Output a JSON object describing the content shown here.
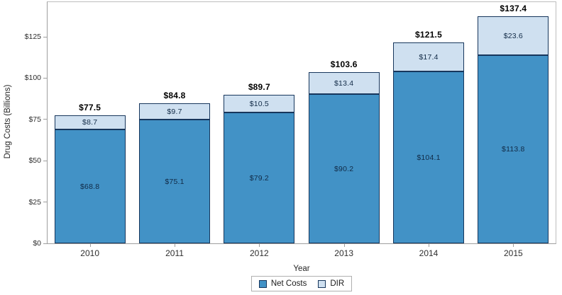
{
  "chart_data": {
    "type": "bar",
    "stacked": true,
    "title": "",
    "xlabel": "Year",
    "ylabel": "Drug Costs (Billions)",
    "categories": [
      "2010",
      "2011",
      "2012",
      "2013",
      "2014",
      "2015"
    ],
    "series": [
      {
        "name": "Net Costs",
        "color": "#4292c6",
        "values": [
          68.8,
          75.1,
          79.2,
          90.2,
          104.1,
          113.8
        ],
        "labels": [
          "$68.8",
          "$75.1",
          "$79.2",
          "$90.2",
          "$104.1",
          "$113.8"
        ]
      },
      {
        "name": "DIR",
        "color": "#cfe0f0",
        "values": [
          8.7,
          9.7,
          10.5,
          13.4,
          17.4,
          23.6
        ],
        "labels": [
          "$8.7",
          "$9.7",
          "$10.5",
          "$13.4",
          "$17.4",
          "$23.6"
        ]
      }
    ],
    "totals": [
      77.5,
      84.8,
      89.7,
      103.6,
      121.5,
      137.4
    ],
    "total_labels": [
      "$77.5",
      "$84.8",
      "$89.7",
      "$103.6",
      "$121.5",
      "$137.4"
    ],
    "ylim": [
      0,
      146
    ],
    "yticks": [
      0,
      25,
      50,
      75,
      100,
      125
    ],
    "ytick_labels": [
      "$0",
      "$25",
      "$50",
      "$75",
      "$100",
      "$125"
    ],
    "grid": false,
    "legend_position": "bottom",
    "colors": {
      "bar_border": "#17365c",
      "segment_label": "#112a46",
      "total_label": "#000000",
      "axis_line": "#9e9e9e",
      "axis_text": "#2e2e2e"
    }
  }
}
